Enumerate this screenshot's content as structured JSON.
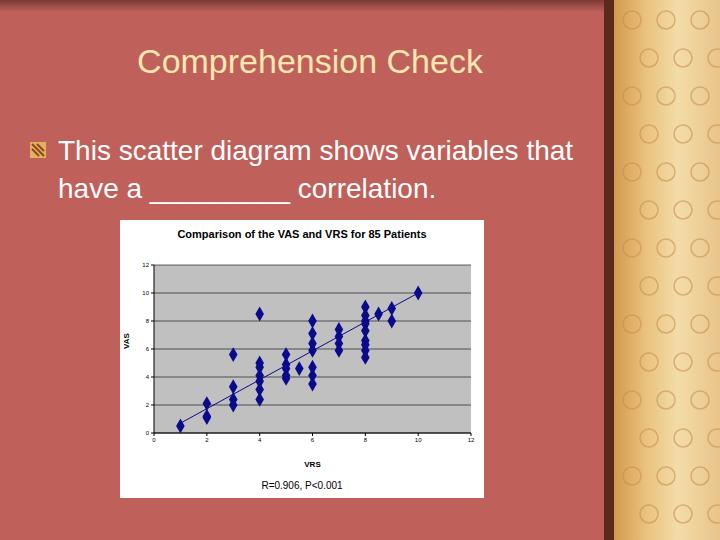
{
  "title": "Comprehension Check",
  "bullet": "This scatter diagram shows variables that have a _________ correlation.",
  "chart_data": {
    "type": "scatter",
    "title": "Comparison of the VAS and VRS for 85 Patients",
    "x_label": "VRS",
    "y_label": "VAS",
    "annotation": "R=0.906, P<0.001",
    "x": [
      1,
      2,
      2,
      2,
      3,
      3,
      3,
      3,
      4,
      4,
      4,
      4,
      4,
      4,
      4,
      5,
      5,
      5,
      5,
      5,
      5.5,
      6,
      6,
      6,
      6,
      6,
      6,
      6,
      7,
      7,
      7,
      7,
      8,
      8,
      8,
      8,
      8,
      8,
      8,
      8,
      8,
      8.5,
      9,
      9,
      10
    ],
    "values": [
      0.5,
      2.1,
      1.1,
      1.2,
      5.6,
      3.3,
      2.4,
      2.0,
      8.5,
      5.0,
      4.7,
      4.1,
      3.7,
      3.1,
      2.4,
      5.6,
      4.9,
      4.6,
      4.1,
      3.9,
      4.6,
      8.0,
      7.1,
      6.4,
      5.9,
      4.7,
      4.1,
      3.5,
      7.4,
      6.9,
      6.4,
      5.9,
      9.0,
      8.4,
      8.0,
      7.8,
      7.3,
      6.6,
      6.3,
      5.9,
      5.4,
      8.5,
      8.9,
      8.0,
      10
    ],
    "color": "#0a0a8c",
    "marker": "diamond",
    "trendline": {
      "x": [
        1,
        10
      ],
      "y": [
        0.7,
        10
      ]
    },
    "xlim": [
      0,
      12
    ],
    "xticks": [
      0,
      2,
      4,
      6,
      8,
      10,
      12
    ],
    "ylim": [
      0,
      12
    ],
    "yticks": [
      0,
      2,
      4,
      6,
      8,
      10,
      12
    ],
    "grid": true
  }
}
